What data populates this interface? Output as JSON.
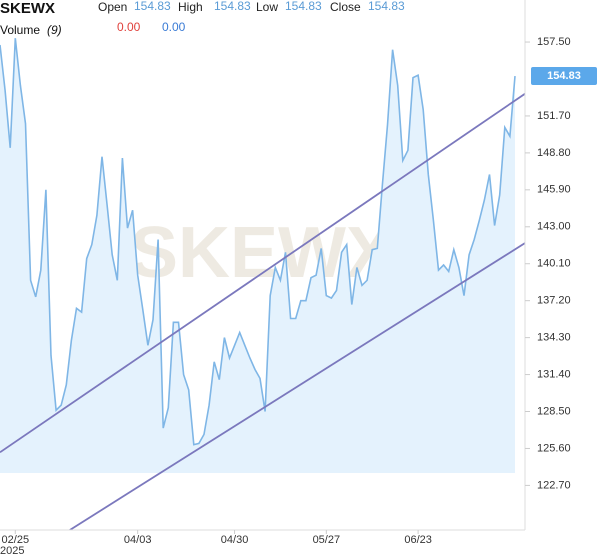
{
  "chart_data": {
    "type": "area",
    "symbol": "SKEWX",
    "watermark": "SKEWX",
    "ohlc": [
      {
        "label": "Open",
        "value": "154.83"
      },
      {
        "label": "High",
        "value": "154.83"
      },
      {
        "label": "Low",
        "value": "154.83"
      },
      {
        "label": "Close",
        "value": "154.83"
      }
    ],
    "volume_label": "Volume",
    "volume_period": "(9)",
    "volume_values": [
      {
        "value": "0.00",
        "color": "#e0413c"
      },
      {
        "value": "0.00",
        "color": "#3a7bd5"
      }
    ],
    "year_label": "2025",
    "categories": [
      null,
      null,
      null,
      "02/25",
      null,
      null,
      null,
      null,
      null,
      null,
      null,
      null,
      null,
      null,
      null,
      null,
      null,
      null,
      null,
      null,
      null,
      null,
      null,
      null,
      null,
      null,
      null,
      "04/03",
      null,
      null,
      null,
      null,
      null,
      null,
      null,
      null,
      null,
      null,
      null,
      null,
      null,
      null,
      null,
      null,
      null,
      null,
      "04/30",
      null,
      null,
      null,
      null,
      null,
      null,
      null,
      null,
      null,
      null,
      null,
      null,
      null,
      null,
      null,
      null,
      null,
      "05/27",
      null,
      null,
      null,
      null,
      null,
      null,
      null,
      null,
      null,
      null,
      null,
      null,
      null,
      null,
      null,
      null,
      null,
      "06/23",
      null,
      null,
      null,
      null,
      null,
      null,
      null,
      null,
      null,
      null,
      null,
      null,
      null,
      null,
      null,
      null,
      null,
      null,
      null
    ],
    "series": [
      {
        "color": "#7fb6e6",
        "fill": "#e4f2fd",
        "values": [
          157.27,
          153.7,
          149.2,
          157.8,
          154.1,
          151.1,
          138.8,
          137.5,
          139.6,
          145.9,
          132.9,
          128.6,
          129.0,
          130.6,
          134.1,
          136.6,
          136.3,
          140.5,
          141.6,
          143.9,
          148.5,
          144.7,
          140.8,
          138.8,
          148.4,
          142.9,
          144.3,
          139.2,
          136.5,
          133.7,
          135.7,
          142.0,
          127.2,
          128.8,
          135.5,
          135.5,
          131.4,
          130.2,
          125.9,
          126.0,
          126.7,
          129.0,
          132.4,
          131.0,
          134.3,
          132.7,
          133.7,
          134.7,
          133.7,
          132.7,
          131.8,
          131.1,
          128.5,
          137.6,
          139.8,
          138.8,
          141.0,
          135.8,
          135.8,
          137.2,
          137.2,
          139.0,
          139.2,
          141.3,
          137.6,
          137.4,
          138.0,
          141.0,
          141.6,
          136.9,
          139.8,
          138.4,
          138.8,
          141.2,
          141.3,
          146.3,
          151.0,
          156.9,
          154.1,
          148.2,
          149.0,
          154.7,
          154.9,
          152.2,
          147.1,
          143.5,
          139.6,
          140.0,
          139.5,
          141.2,
          139.8,
          137.6,
          140.8,
          142.0,
          143.5,
          145.1,
          147.1,
          143.1,
          145.5,
          150.8,
          150.1,
          154.83
        ]
      }
    ],
    "trend_lines": [
      {
        "color": "#7b78bd",
        "x": [
          0,
          103.9
        ],
        "values": [
          125.3,
          153.7
        ]
      },
      {
        "color": "#7b78bd",
        "x": [
          13.7,
          103.9
        ],
        "values": [
          119.2,
          141.96
        ]
      }
    ],
    "ylim": [
      119.2,
      160.8
    ],
    "yticks": [
      {
        "value": 157.5,
        "label": "157.50"
      },
      {
        "value": 151.7,
        "label": "151.70"
      },
      {
        "value": 148.8,
        "label": "148.80"
      },
      {
        "value": 145.9,
        "label": "145.90"
      },
      {
        "value": 143.0,
        "label": "143.00"
      },
      {
        "value": 140.1,
        "label": "140.10"
      },
      {
        "value": 137.2,
        "label": "137.20"
      },
      {
        "value": 134.3,
        "label": "134.30"
      },
      {
        "value": 131.4,
        "label": "131.40"
      },
      {
        "value": 128.5,
        "label": "128.50"
      },
      {
        "value": 125.6,
        "label": "125.60"
      },
      {
        "value": 122.7,
        "label": "122.70"
      }
    ],
    "price_badge_color": "#5ba8ea"
  }
}
